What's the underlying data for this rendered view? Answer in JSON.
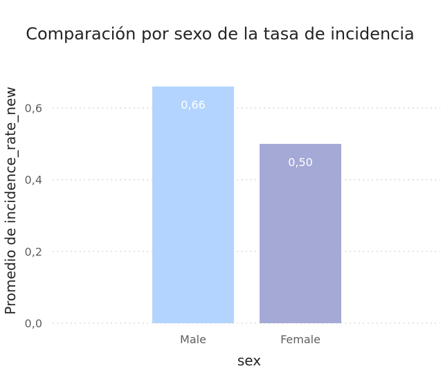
{
  "chart_data": {
    "type": "bar",
    "title": "Comparación por sexo de la tasa de incidencia",
    "xlabel": "sex",
    "ylabel": "Promedio de incidence_rate_new",
    "categories": [
      "Male",
      "Female"
    ],
    "values": [
      0.66,
      0.5
    ],
    "value_labels": [
      "0,66",
      "0,50"
    ],
    "bar_colors": [
      "#B3D4FF",
      "#A4A9D6"
    ],
    "yticks": [
      0,
      0.2,
      0.4,
      0.6
    ],
    "ytick_labels": [
      "0,0",
      "0,2",
      "0,4",
      "0,6"
    ],
    "ylim": [
      0,
      0.66
    ],
    "grid": true,
    "legend": "none"
  }
}
